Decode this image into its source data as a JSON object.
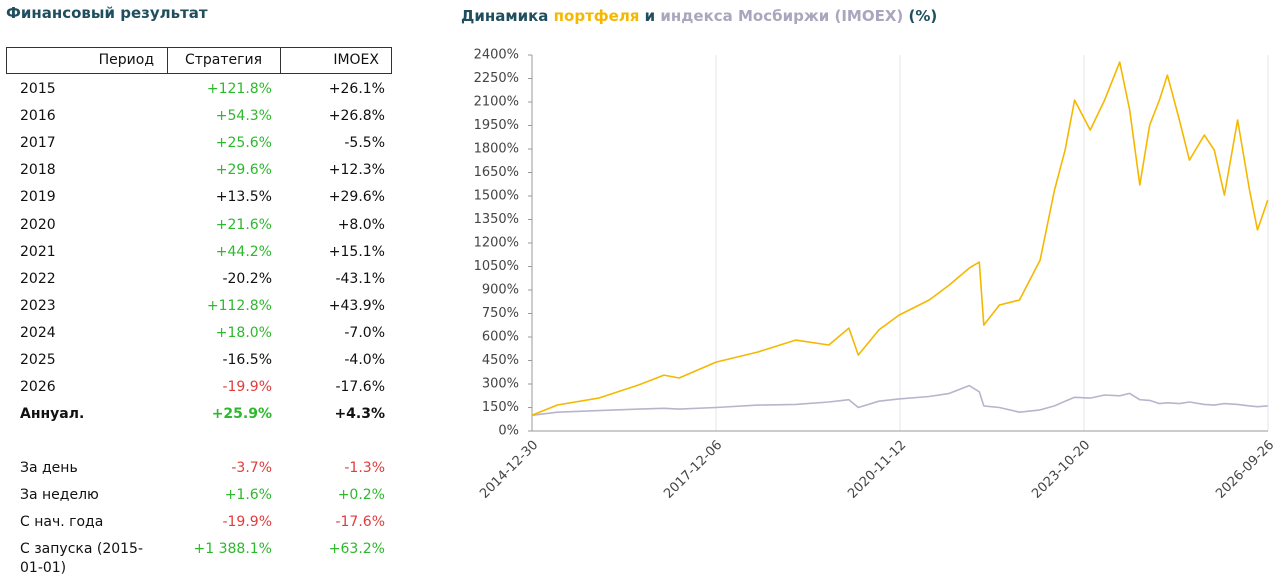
{
  "table": {
    "title": "Финансовый результат",
    "header": [
      "Период",
      "Стратегия",
      "IMOEX"
    ],
    "rows": [
      {
        "cells": [
          "2015",
          "+121.8%",
          "+26.1%"
        ],
        "colors": [
          "#2eb82e",
          "#111111"
        ]
      },
      {
        "cells": [
          "2016",
          "+54.3%",
          "+26.8%"
        ],
        "colors": [
          "#2eb82e",
          "#111111"
        ]
      },
      {
        "cells": [
          "2017",
          "+25.6%",
          "-5.5%"
        ],
        "colors": [
          "#2eb82e",
          "#111111"
        ]
      },
      {
        "cells": [
          "2018",
          "+29.6%",
          "+12.3%"
        ],
        "colors": [
          "#2eb82e",
          "#111111"
        ]
      },
      {
        "cells": [
          "2019",
          "+13.5%",
          "+29.6%"
        ],
        "colors": [
          "#111111",
          "#111111"
        ]
      },
      {
        "cells": [
          "2020",
          "+21.6%",
          "+8.0%"
        ],
        "colors": [
          "#2eb82e",
          "#111111"
        ]
      },
      {
        "cells": [
          "2021",
          "+44.2%",
          "+15.1%"
        ],
        "colors": [
          "#2eb82e",
          "#111111"
        ]
      },
      {
        "cells": [
          "2022",
          "-20.2%",
          "-43.1%"
        ],
        "colors": [
          "#111111",
          "#111111"
        ]
      },
      {
        "cells": [
          "2023",
          "+112.8%",
          "+43.9%"
        ],
        "colors": [
          "#2eb82e",
          "#111111"
        ]
      },
      {
        "cells": [
          "2024",
          "+18.0%",
          "-7.0%"
        ],
        "colors": [
          "#2eb82e",
          "#111111"
        ]
      },
      {
        "cells": [
          "2025",
          "-16.5%",
          "-4.0%"
        ],
        "colors": [
          "#111111",
          "#111111"
        ]
      },
      {
        "cells": [
          "2026",
          "-19.9%",
          "-17.6%"
        ],
        "colors": [
          "#e03c3c",
          "#111111"
        ]
      },
      {
        "cells": [
          "Аннуал.",
          "+25.9%",
          "+4.3%"
        ],
        "colors": [
          "#2eb82e",
          "#111111"
        ],
        "bold": true
      }
    ],
    "summary": [
      {
        "cells": [
          "За день",
          "-3.7%",
          "-1.3%"
        ],
        "colors": [
          "#e03c3c",
          "#e03c3c"
        ]
      },
      {
        "cells": [
          "За неделю",
          "+1.6%",
          "+0.2%"
        ],
        "colors": [
          "#2eb82e",
          "#2eb82e"
        ]
      },
      {
        "cells": [
          "С нач. года",
          "-19.9%",
          "-17.6%"
        ],
        "colors": [
          "#e03c3c",
          "#e03c3c"
        ]
      },
      {
        "cells": [
          "С запуска (2015-01-01)",
          "+1 388.1%",
          "+63.2%"
        ],
        "colors": [
          "#2eb82e",
          "#2eb82e"
        ]
      }
    ]
  },
  "chart_data": {
    "type": "line",
    "title": [
      {
        "text": "Динамика ",
        "color": "#1f4e5f"
      },
      {
        "text": "портфеля",
        "color": "#f5b800"
      },
      {
        "text": " и ",
        "color": "#1f4e5f"
      },
      {
        "text": "индекса Мосбиржи (IMOEX)",
        "color": "#aaa6bd"
      },
      {
        "text": " (%)",
        "color": "#1f4e5f"
      }
    ],
    "x": [
      "2014-12-30",
      "2015-05-27",
      "2016-01-22",
      "2016-09-12",
      "2017-02-06",
      "2017-05-05",
      "2017-12-06",
      "2018-08-07",
      "2019-03-15",
      "2019-09-24",
      "2020-01-19",
      "2020-03-14",
      "2020-07-12",
      "2020-11-06",
      "2021-05-01",
      "2021-08-26",
      "2021-12-20",
      "2022-02-17",
      "2022-03-15",
      "2022-06-14",
      "2022-10-09",
      "2023-02-06",
      "2023-05-01",
      "2023-07-02",
      "2023-08-26",
      "2023-11-25",
      "2024-02-17",
      "2024-05-15",
      "2024-07-12",
      "2024-09-09",
      "2024-11-06",
      "2025-01-01",
      "2025-02-17",
      "2025-04-28",
      "2025-06-25",
      "2025-09-20",
      "2025-11-17",
      "2026-01-15",
      "2026-04-02",
      "2026-06-10",
      "2026-07-27",
      "2026-09-24"
    ],
    "series": [
      {
        "name": "портфеля",
        "color": "#f5b800",
        "values": [
          100,
          166,
          210,
          294,
          357,
          338,
          440,
          504,
          580,
          549,
          657,
          485,
          645,
          740,
          836,
          932,
          1040,
          1078,
          676,
          804,
          836,
          1091,
          1538,
          1793,
          2112,
          1921,
          2112,
          2355,
          2048,
          1570,
          1953,
          2112,
          2272,
          1985,
          1729,
          1889,
          1793,
          1506,
          1985,
          1538,
          1283,
          1474
        ]
      },
      {
        "name": "IMOEX",
        "color": "#b9b4cc",
        "values": [
          100,
          120,
          130,
          140,
          145,
          140,
          150,
          165,
          170,
          185,
          200,
          150,
          190,
          205,
          220,
          240,
          290,
          250,
          160,
          150,
          120,
          135,
          160,
          190,
          215,
          210,
          230,
          225,
          240,
          200,
          195,
          175,
          180,
          175,
          185,
          170,
          165,
          175,
          170,
          160,
          155,
          160
        ]
      }
    ],
    "xlim": [
      "2014-12-30",
      "2026-09-26"
    ],
    "xticks": [
      "2014-12-30",
      "2017-12-06",
      "2020-11-12",
      "2023-10-20",
      "2026-09-26"
    ],
    "ylim": [
      0,
      2400
    ],
    "yticks": [
      {
        "value": 0,
        "label": "0%"
      },
      {
        "value": 150,
        "label": "150%"
      },
      {
        "value": 300,
        "label": "300%"
      },
      {
        "value": 450,
        "label": "450%"
      },
      {
        "value": 600,
        "label": "600%"
      },
      {
        "value": 750,
        "label": "750%"
      },
      {
        "value": 900,
        "label": "900%"
      },
      {
        "value": 1050,
        "label": "1050%"
      },
      {
        "value": 1200,
        "label": "1200%"
      },
      {
        "value": 1350,
        "label": "1350%"
      },
      {
        "value": 1500,
        "label": "1500%"
      },
      {
        "value": 1650,
        "label": "1650%"
      },
      {
        "value": 1800,
        "label": "1800%"
      },
      {
        "value": 1950,
        "label": "1950%"
      },
      {
        "value": 2100,
        "label": "2100%"
      },
      {
        "value": 2250,
        "label": "2250%"
      },
      {
        "value": 2400,
        "label": "2400%"
      }
    ],
    "grid": "x"
  }
}
